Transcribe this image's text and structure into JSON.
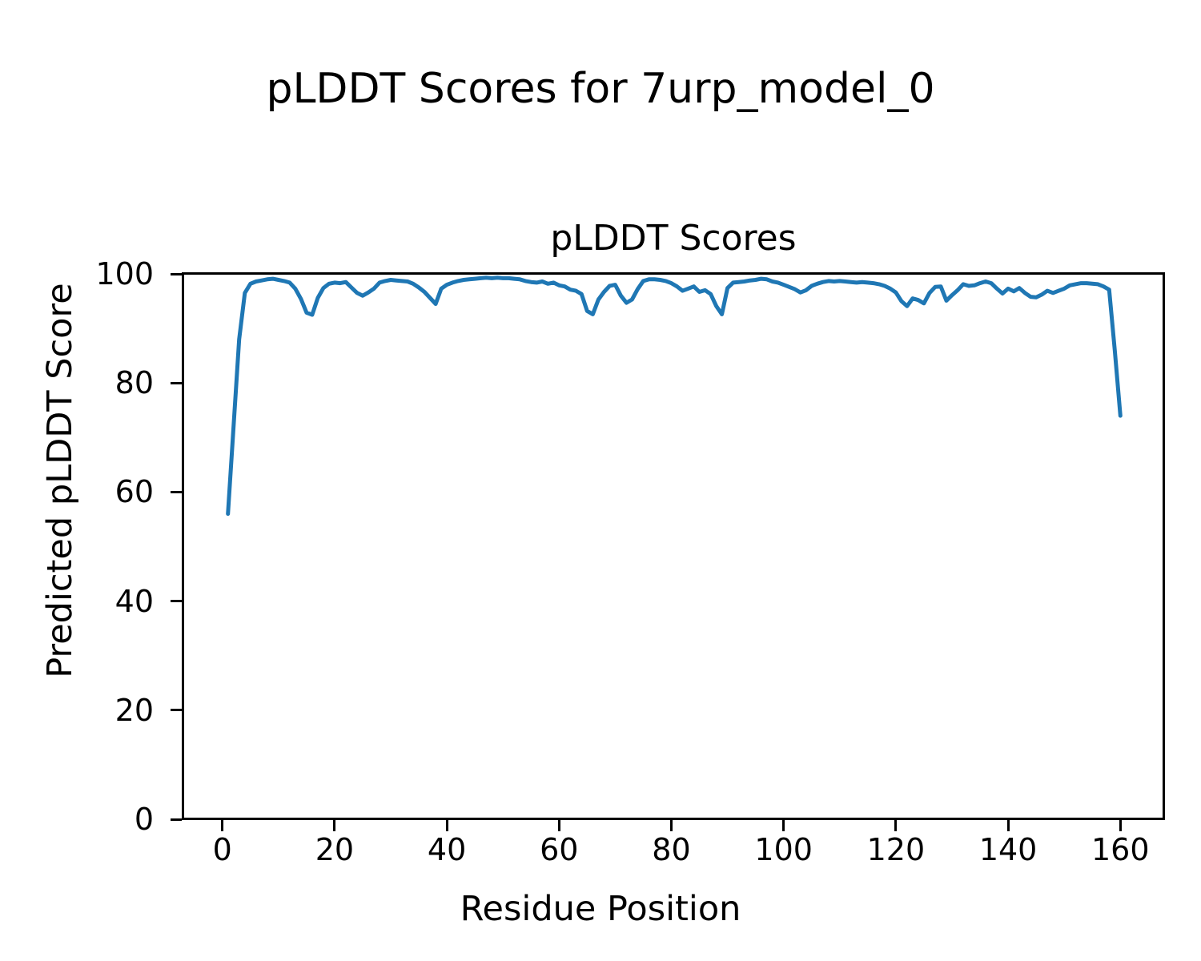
{
  "figure": {
    "suptitle": "pLDDT Scores for 7urp_model_0",
    "background_color": "#ffffff",
    "text_color": "#000000"
  },
  "chart_data": {
    "type": "line",
    "title": "pLDDT Scores",
    "xlabel": "Residue Position",
    "ylabel": "Predicted pLDDT Score",
    "line_color": "#1f77b4",
    "grid": false,
    "legend": "none",
    "xlim": [
      -6.95,
      167.95
    ],
    "ylim": [
      0,
      100
    ],
    "xticks": [
      0,
      20,
      40,
      60,
      80,
      100,
      120,
      140,
      160
    ],
    "yticks": [
      0,
      20,
      40,
      60,
      80,
      100
    ],
    "x": [
      1,
      2,
      3,
      4,
      5,
      6,
      7,
      8,
      9,
      10,
      11,
      12,
      13,
      14,
      15,
      16,
      17,
      18,
      19,
      20,
      21,
      22,
      23,
      24,
      25,
      26,
      27,
      28,
      29,
      30,
      31,
      32,
      33,
      34,
      35,
      36,
      37,
      38,
      39,
      40,
      41,
      42,
      43,
      44,
      45,
      46,
      47,
      48,
      49,
      50,
      51,
      52,
      53,
      54,
      55,
      56,
      57,
      58,
      59,
      60,
      61,
      62,
      63,
      64,
      65,
      66,
      67,
      68,
      69,
      70,
      71,
      72,
      73,
      74,
      75,
      76,
      77,
      78,
      79,
      80,
      81,
      82,
      83,
      84,
      85,
      86,
      87,
      88,
      89,
      90,
      91,
      92,
      93,
      94,
      95,
      96,
      97,
      98,
      99,
      100,
      101,
      102,
      103,
      104,
      105,
      106,
      107,
      108,
      109,
      110,
      111,
      112,
      113,
      114,
      115,
      116,
      117,
      118,
      119,
      120,
      121,
      122,
      123,
      124,
      125,
      126,
      127,
      128,
      129,
      130,
      131,
      132,
      133,
      134,
      135,
      136,
      137,
      138,
      139,
      140,
      141,
      142,
      143,
      144,
      145,
      146,
      147,
      148,
      149,
      150,
      151,
      152,
      153,
      154,
      155,
      156,
      157,
      158,
      159,
      160
    ],
    "y": [
      56.0,
      72.0,
      88.0,
      96.5,
      98.2,
      98.6,
      98.8,
      99.0,
      99.1,
      98.9,
      98.7,
      98.4,
      97.3,
      95.4,
      92.9,
      92.5,
      95.6,
      97.4,
      98.2,
      98.4,
      98.3,
      98.5,
      97.5,
      96.5,
      96.0,
      96.6,
      97.3,
      98.4,
      98.7,
      98.9,
      98.8,
      98.7,
      98.6,
      98.2,
      97.5,
      96.7,
      95.6,
      94.5,
      97.3,
      98.0,
      98.4,
      98.7,
      98.9,
      99.0,
      99.1,
      99.2,
      99.3,
      99.2,
      99.3,
      99.2,
      99.2,
      99.1,
      99.0,
      98.7,
      98.5,
      98.4,
      98.6,
      98.2,
      98.4,
      97.9,
      97.7,
      97.1,
      96.9,
      96.3,
      93.2,
      92.6,
      95.3,
      96.7,
      97.8,
      98.0,
      96.0,
      94.7,
      95.3,
      97.2,
      98.7,
      99.0,
      99.0,
      98.9,
      98.7,
      98.3,
      97.7,
      96.9,
      97.3,
      97.7,
      96.7,
      97.0,
      96.3,
      94.1,
      92.6,
      97.4,
      98.4,
      98.5,
      98.6,
      98.8,
      98.9,
      99.1,
      99.0,
      98.6,
      98.4,
      98.0,
      97.6,
      97.2,
      96.6,
      97.0,
      97.8,
      98.2,
      98.5,
      98.7,
      98.6,
      98.7,
      98.6,
      98.5,
      98.4,
      98.5,
      98.4,
      98.3,
      98.1,
      97.8,
      97.3,
      96.6,
      95.0,
      94.1,
      95.5,
      95.2,
      94.6,
      96.5,
      97.6,
      97.7,
      95.1,
      96.1,
      97.0,
      98.1,
      97.8,
      97.9,
      98.3,
      98.6,
      98.3,
      97.3,
      96.4,
      97.3,
      96.8,
      97.4,
      96.5,
      95.8,
      95.7,
      96.2,
      96.9,
      96.5,
      96.9,
      97.3,
      97.9,
      98.1,
      98.3,
      98.3,
      98.2,
      98.1,
      97.7,
      97.1,
      86.0,
      74.0
    ]
  }
}
